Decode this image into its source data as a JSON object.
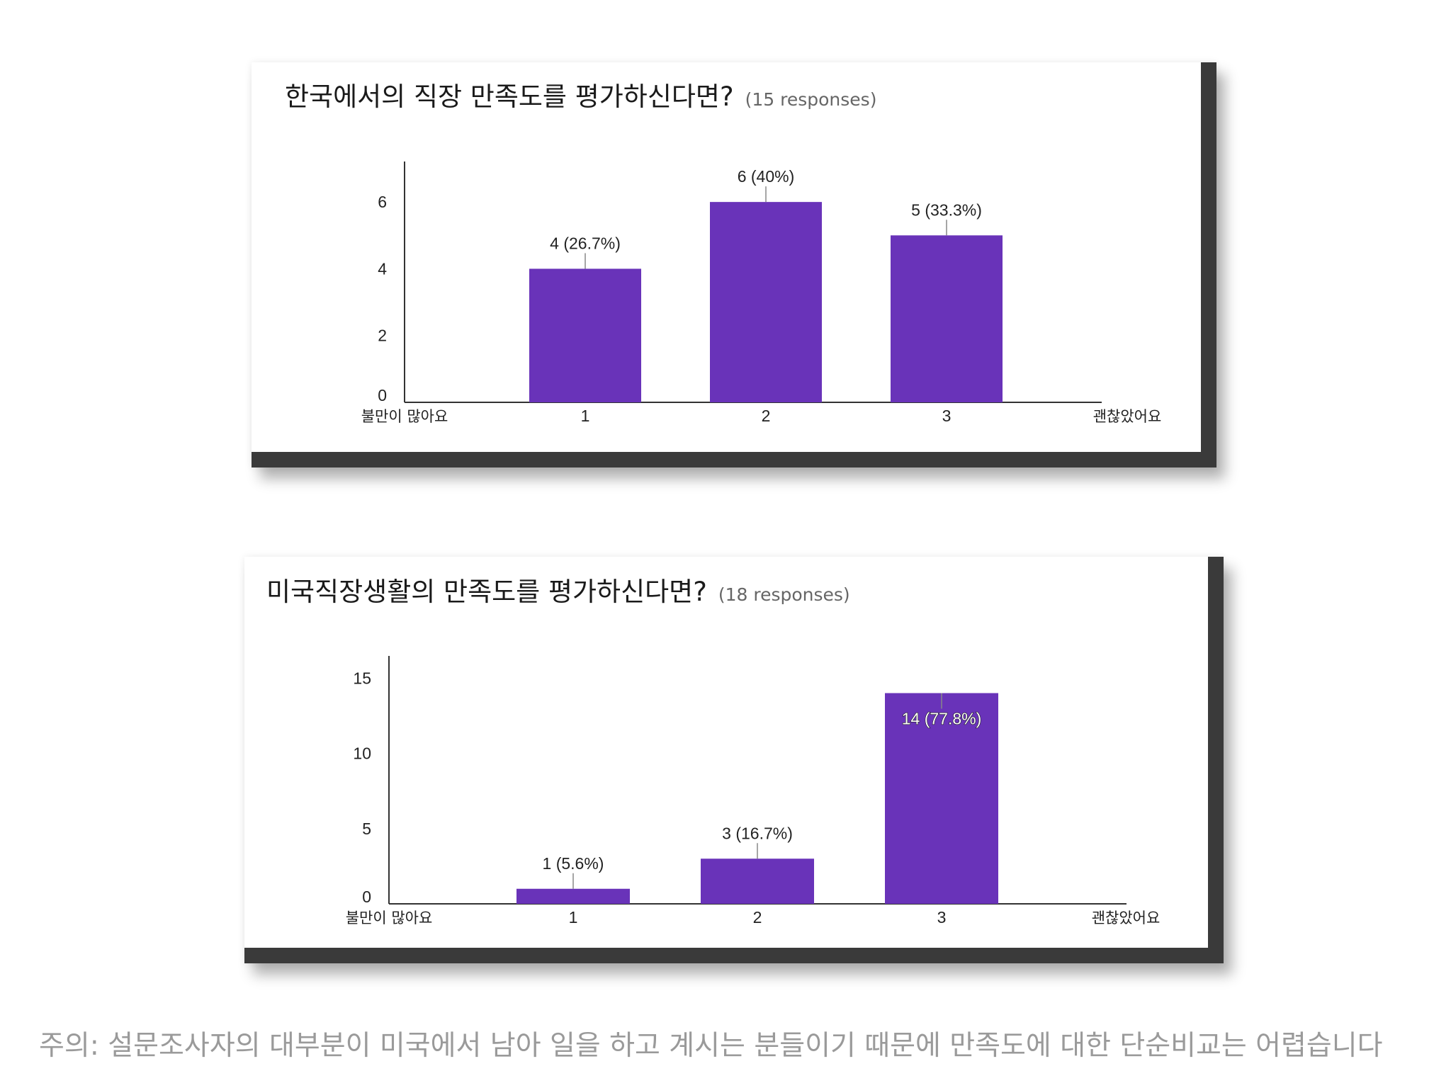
{
  "colors": {
    "bar": "#6933b9",
    "axis": "#333333",
    "frame": "#3a3a3a",
    "footnote": "#9a9a9a"
  },
  "cards": [
    {
      "question": "한국에서의 직장 만족도를 평가하신다면?",
      "responses": "(15 responses)"
    },
    {
      "question": "미국직장생활의 만족도를 평가하신다면?",
      "responses": "(18 responses)"
    }
  ],
  "chart_data": [
    {
      "type": "bar",
      "categories": [
        "1",
        "2",
        "3"
      ],
      "values": [
        4,
        6,
        5
      ],
      "data_labels": [
        "4 (26.7%)",
        "6 (40%)",
        "5 (33.3%)"
      ],
      "y_ticks": [
        0,
        2,
        4,
        6
      ],
      "ylim": [
        0,
        7
      ],
      "x_min_label": "불만이 많아요",
      "x_max_label": "괜찮았어요",
      "grid": false,
      "legend": "none"
    },
    {
      "type": "bar",
      "categories": [
        "1",
        "2",
        "3"
      ],
      "values": [
        1,
        3,
        14
      ],
      "data_labels": [
        "1 (5.6%)",
        "3 (16.7%)",
        "14 (77.8%)"
      ],
      "y_ticks": [
        0,
        5,
        10,
        15
      ],
      "ylim": [
        0,
        16
      ],
      "x_min_label": "불만이 많아요",
      "x_max_label": "괜찮았어요",
      "grid": false,
      "legend": "none"
    }
  ],
  "footnote": "주의: 설문조사자의 대부분이 미국에서 남아 일을 하고 계시는 분들이기 때문에 만족도에 대한 단순비교는 어렵습니다"
}
